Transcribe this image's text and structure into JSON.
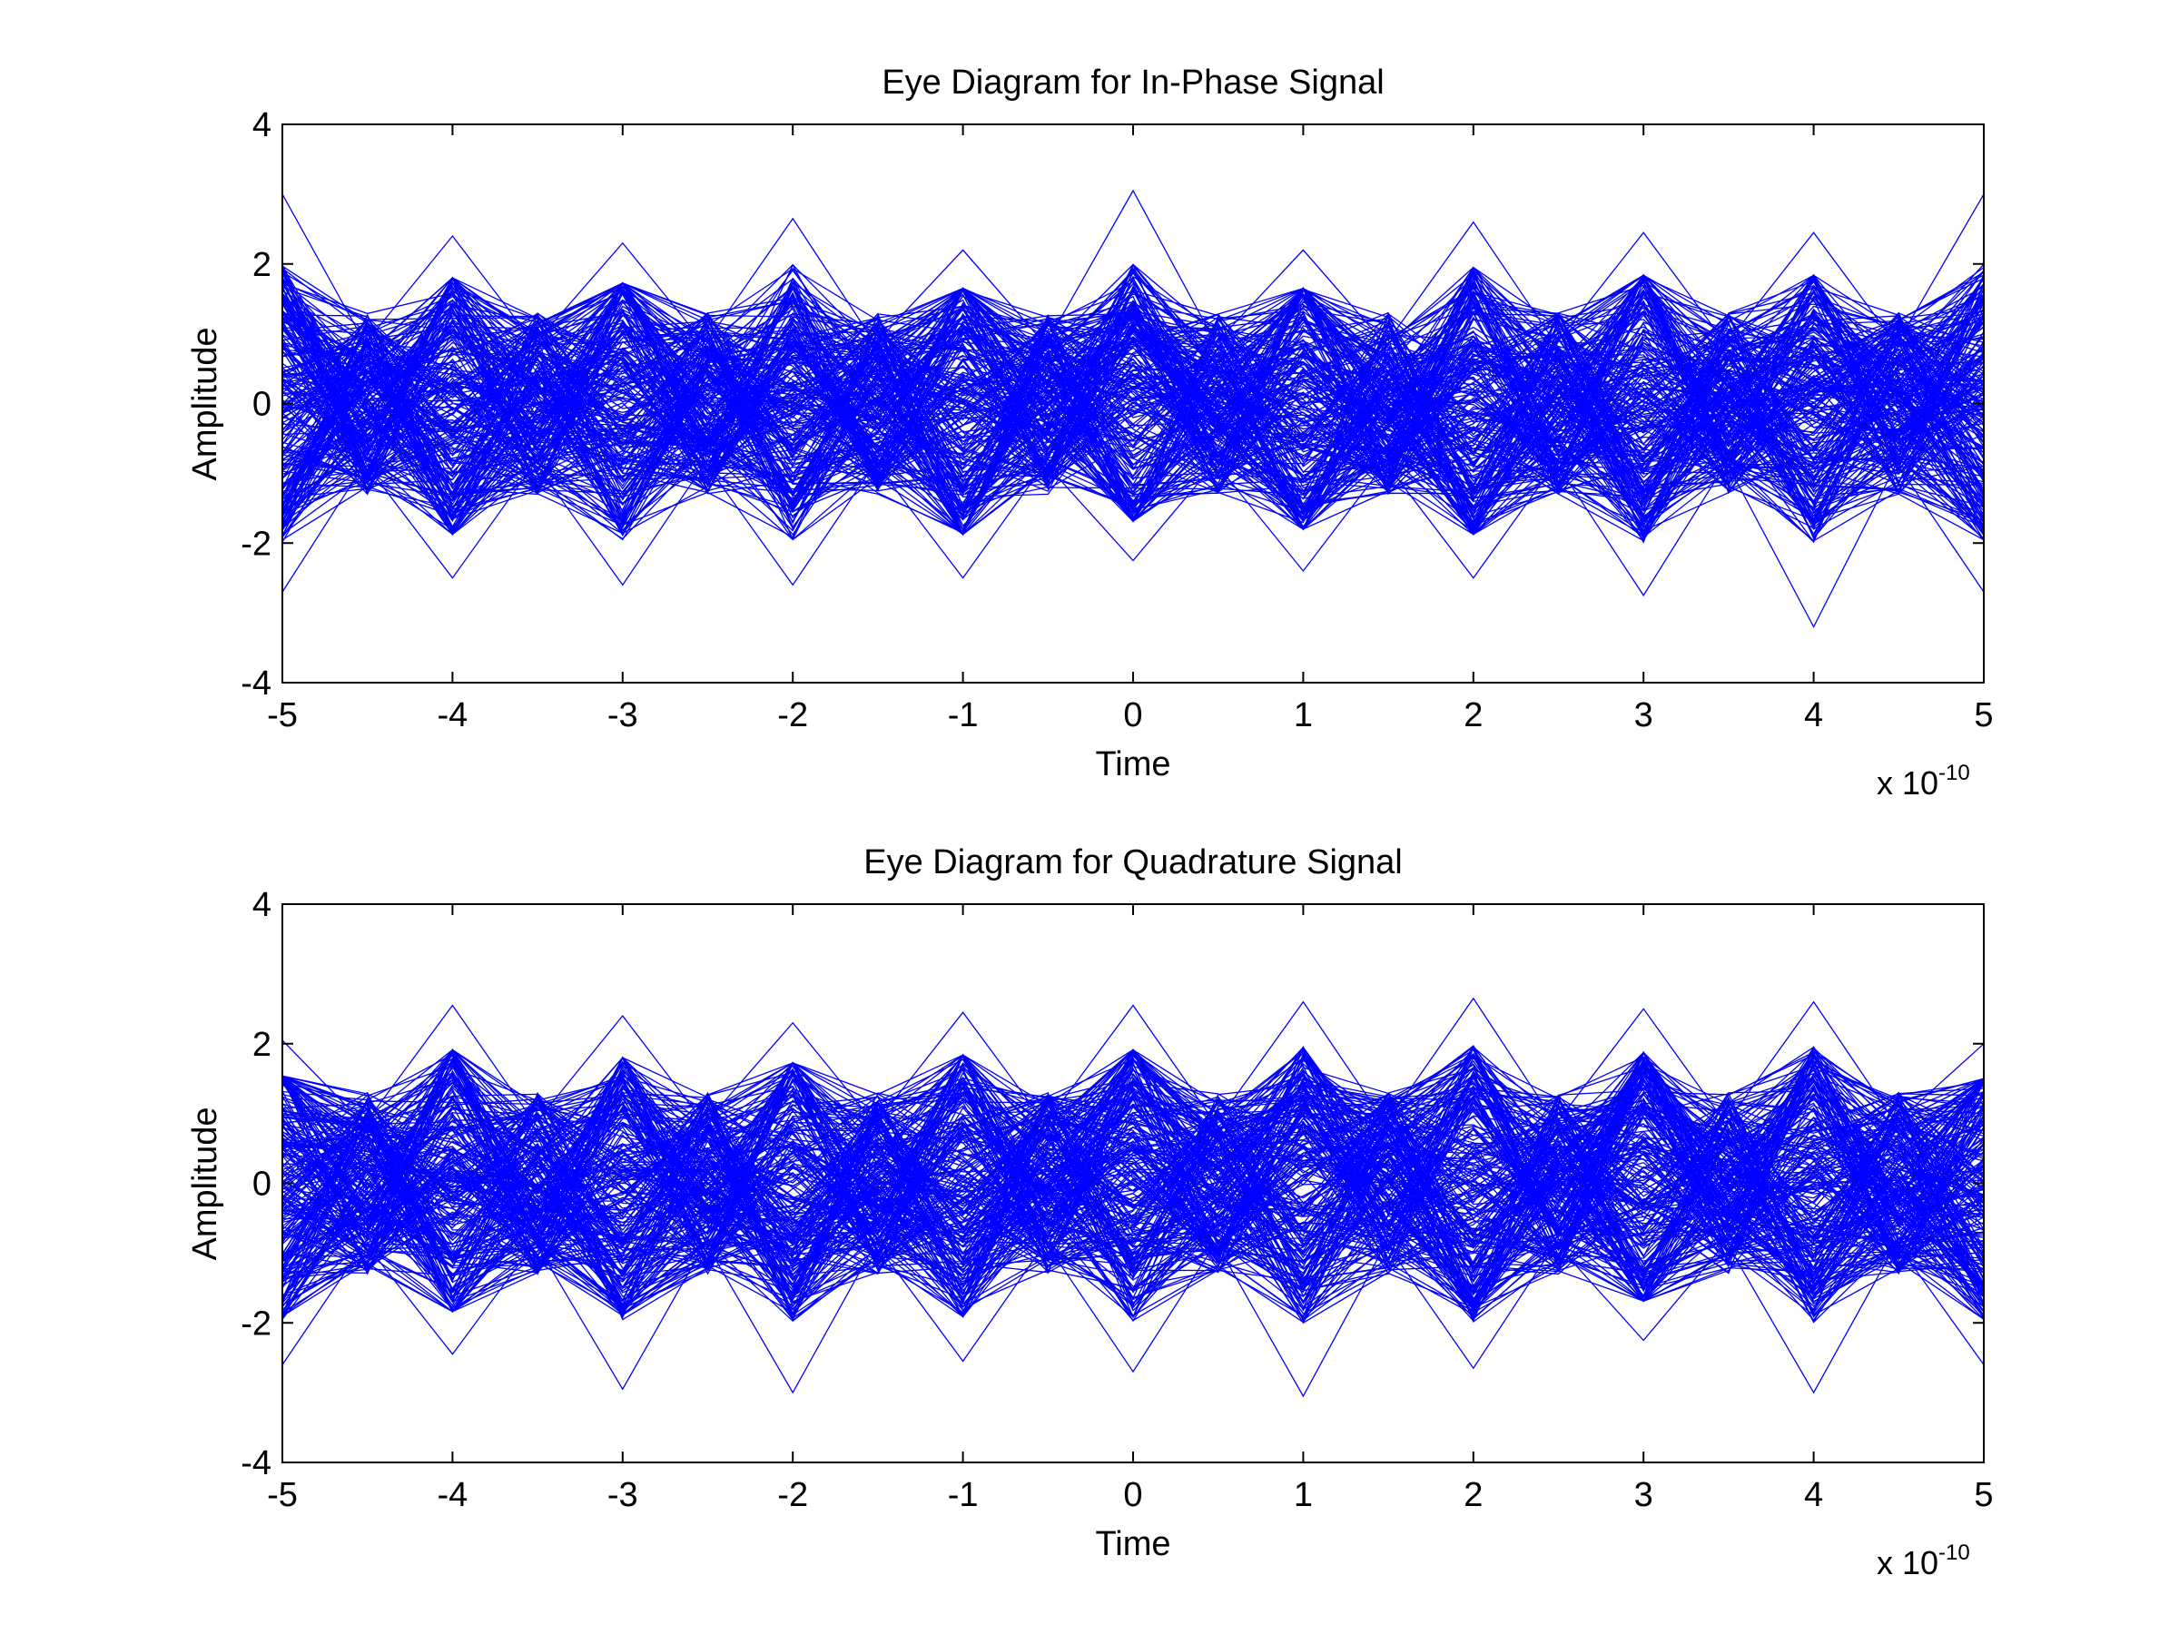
{
  "figure": {
    "background": "#ffffff",
    "trace_color": "#0000ff",
    "axis_color": "#000000"
  },
  "chart_data": [
    {
      "type": "line",
      "chart_kind": "eye diagram",
      "title": "Eye Diagram for In-Phase Signal",
      "xlabel": "Time",
      "ylabel": "Amplitude",
      "x_multiplier_base": "x 10",
      "x_multiplier_exponent": "-10",
      "xlim": [
        -5e-10,
        5e-10
      ],
      "ylim": [
        -4,
        4
      ],
      "x_ticks": [
        -5,
        -4,
        -3,
        -2,
        -1,
        0,
        1,
        2,
        3,
        4,
        5
      ],
      "x_tick_labels": [
        "-5",
        "-4",
        "-3",
        "-2",
        "-1",
        "0",
        "1",
        "2",
        "3",
        "4",
        "5"
      ],
      "y_ticks": [
        -4,
        -2,
        0,
        2,
        4
      ],
      "y_tick_labels": [
        "-4",
        "-2",
        "0",
        "2",
        "4"
      ],
      "grid": false,
      "legend": "none",
      "symbol_period": 1e-10,
      "x": [
        -5e-10,
        -4e-10,
        -3e-10,
        -2e-10,
        -1e-10,
        0,
        1e-10,
        2e-10,
        3e-10,
        4e-10,
        5e-10
      ],
      "envelope_max": [
        3.0,
        2.4,
        2.3,
        2.65,
        2.2,
        3.05,
        2.2,
        2.6,
        2.45,
        2.45,
        3.0
      ],
      "envelope_min": [
        -2.7,
        -2.5,
        -2.6,
        -2.6,
        -2.5,
        -2.25,
        -2.4,
        -2.5,
        -2.75,
        -3.2,
        -2.7
      ],
      "dense_band": [
        -1.9,
        1.9
      ],
      "trace_count": 250
    },
    {
      "type": "line",
      "chart_kind": "eye diagram",
      "title": "Eye Diagram for Quadrature Signal",
      "xlabel": "Time",
      "ylabel": "Amplitude",
      "x_multiplier_base": "x 10",
      "x_multiplier_exponent": "-10",
      "xlim": [
        -5e-10,
        5e-10
      ],
      "ylim": [
        -4,
        4
      ],
      "x_ticks": [
        -5,
        -4,
        -3,
        -2,
        -1,
        0,
        1,
        2,
        3,
        4,
        5
      ],
      "x_tick_labels": [
        "-5",
        "-4",
        "-3",
        "-2",
        "-1",
        "0",
        "1",
        "2",
        "3",
        "4",
        "5"
      ],
      "y_ticks": [
        -4,
        -2,
        0,
        2,
        4
      ],
      "y_tick_labels": [
        "-4",
        "-2",
        "0",
        "2",
        "4"
      ],
      "grid": false,
      "legend": "none",
      "symbol_period": 1e-10,
      "x": [
        -5e-10,
        -4e-10,
        -3e-10,
        -2e-10,
        -1e-10,
        0,
        1e-10,
        2e-10,
        3e-10,
        4e-10,
        5e-10
      ],
      "envelope_max": [
        2.05,
        2.55,
        2.4,
        2.3,
        2.45,
        2.55,
        2.6,
        2.65,
        2.5,
        2.6,
        2.0
      ],
      "envelope_min": [
        -2.6,
        -2.45,
        -2.95,
        -3.0,
        -2.55,
        -2.7,
        -3.05,
        -2.65,
        -2.25,
        -3.0,
        -2.6
      ],
      "dense_band": [
        -2.0,
        2.0
      ],
      "trace_count": 250
    }
  ]
}
